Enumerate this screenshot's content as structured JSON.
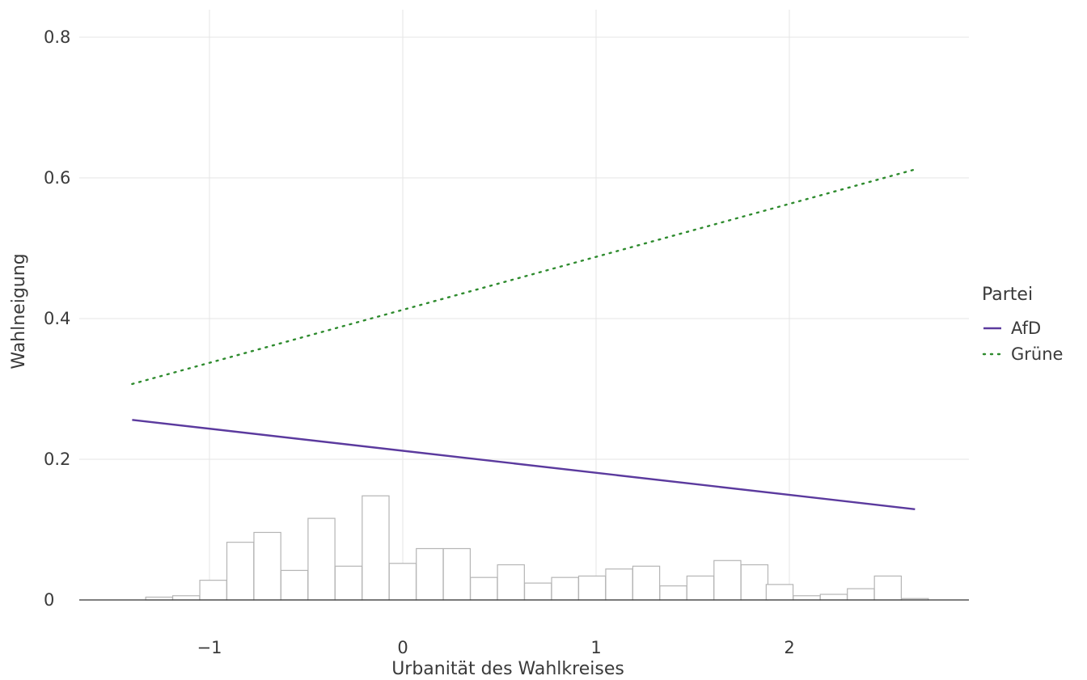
{
  "chart_data": {
    "type": "line",
    "xlabel": "Urbanität des Wahlkreises",
    "ylabel": "Wahlneigung",
    "xlim": [
      -1.7,
      2.95
    ],
    "ylim": [
      0,
      0.8
    ],
    "x_ticks": [
      {
        "value": -1,
        "label": "−1"
      },
      {
        "value": 0,
        "label": "0"
      },
      {
        "value": 1,
        "label": "1"
      },
      {
        "value": 2,
        "label": "2"
      }
    ],
    "y_ticks": [
      {
        "value": 0,
        "label": "0"
      },
      {
        "value": 0.2,
        "label": "0.2"
      },
      {
        "value": 0.4,
        "label": "0.4"
      },
      {
        "value": 0.6,
        "label": "0.6"
      },
      {
        "value": 0.8,
        "label": "0.8"
      }
    ],
    "grid": true,
    "legend": {
      "title": "Partei",
      "position": "right",
      "entries": [
        {
          "name": "AfD",
          "color": "#5b3a9e",
          "style": "solid"
        },
        {
          "name": "Grüne",
          "color": "#2e8b2e",
          "style": "dotted"
        }
      ]
    },
    "series": [
      {
        "name": "AfD",
        "color": "#5b3a9e",
        "style": "solid",
        "x": [
          -1.4,
          2.65
        ],
        "y": [
          0.256,
          0.129
        ]
      },
      {
        "name": "Grüne",
        "color": "#2e8b2e",
        "style": "dotted",
        "x": [
          -1.4,
          2.65
        ],
        "y": [
          0.307,
          0.612
        ]
      }
    ],
    "histogram": {
      "bin_width": 0.139,
      "bin_starts": [
        -1.33,
        -1.19,
        -1.05,
        -0.91,
        -0.77,
        -0.63,
        -0.49,
        -0.35,
        -0.21,
        -0.07,
        0.07,
        0.21,
        0.35,
        0.49,
        0.63,
        0.77,
        0.91,
        1.05,
        1.19,
        1.33,
        1.47,
        1.61,
        1.75,
        1.88,
        2.02,
        2.16,
        2.3,
        2.44,
        2.58
      ],
      "heights": [
        0.004,
        0.006,
        0.028,
        0.082,
        0.096,
        0.042,
        0.116,
        0.048,
        0.148,
        0.052,
        0.073,
        0.073,
        0.032,
        0.05,
        0.024,
        0.032,
        0.034,
        0.044,
        0.048,
        0.02,
        0.034,
        0.056,
        0.05,
        0.022,
        0.006,
        0.008,
        0.016,
        0.034,
        0.002
      ],
      "color": "#ffffff",
      "edge_color": "#b5b5b5"
    }
  }
}
